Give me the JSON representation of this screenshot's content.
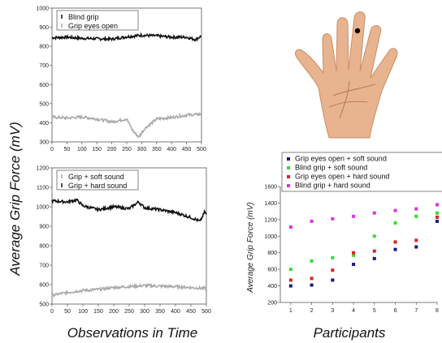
{
  "figure": {
    "shared_ylabel": "Average Grip Force (mV)",
    "left_xlabel": "Observations in Time"
  },
  "chart_data": [
    {
      "type": "line",
      "xlim": [
        0,
        500
      ],
      "ylim": [
        300,
        1000
      ],
      "x_ticks": [
        "0",
        "50",
        "100",
        "150",
        "200",
        "250",
        "300",
        "350",
        "400",
        "450",
        "500"
      ],
      "y_ticks": [
        "300",
        "400",
        "500",
        "600",
        "700",
        "800",
        "900",
        "1000"
      ],
      "legend_position": "top-left",
      "series": [
        {
          "name": "Blind grip",
          "color": "#111111",
          "x": [
            0,
            50,
            100,
            150,
            200,
            250,
            300,
            350,
            400,
            450,
            480,
            500
          ],
          "y": [
            845,
            848,
            842,
            840,
            838,
            850,
            858,
            855,
            848,
            848,
            835,
            855
          ]
        },
        {
          "name": "Grip eyes open",
          "color": "#aaaaaa",
          "x": [
            0,
            50,
            100,
            150,
            200,
            250,
            270,
            290,
            310,
            350,
            400,
            450,
            500
          ],
          "y": [
            430,
            425,
            430,
            420,
            405,
            420,
            360,
            325,
            370,
            420,
            428,
            440,
            445
          ]
        }
      ]
    },
    {
      "type": "line",
      "xlim": [
        0,
        500
      ],
      "ylim": [
        500,
        1200
      ],
      "x_ticks": [
        "0",
        "50",
        "100",
        "150",
        "200",
        "250",
        "300",
        "350",
        "400",
        "450",
        "500"
      ],
      "y_ticks": [
        "500",
        "600",
        "700",
        "800",
        "900",
        "1000",
        "1100",
        "1200"
      ],
      "legend_position": "top-left",
      "series": [
        {
          "name": "Grip + soft sound",
          "color": "#aaaaaa",
          "x": [
            0,
            50,
            100,
            150,
            200,
            250,
            300,
            350,
            400,
            450,
            500
          ],
          "y": [
            545,
            560,
            570,
            575,
            585,
            590,
            595,
            592,
            590,
            585,
            580
          ]
        },
        {
          "name": "Grip + hard sound",
          "color": "#111111",
          "x": [
            0,
            50,
            80,
            100,
            150,
            200,
            250,
            280,
            300,
            350,
            400,
            450,
            480,
            495,
            500
          ],
          "y": [
            1030,
            1025,
            1035,
            1005,
            985,
            1000,
            990,
            1025,
            995,
            985,
            970,
            945,
            925,
            975,
            960
          ]
        }
      ]
    },
    {
      "type": "scatter",
      "xlabel": "Participants",
      "xlim": [
        0.5,
        8
      ],
      "ylim": [
        200,
        1600
      ],
      "x_ticks": [
        "1",
        "2",
        "3",
        "4",
        "5",
        "6",
        "7",
        "8"
      ],
      "y_ticks": [
        "200",
        "400",
        "600",
        "800",
        "1000",
        "1200",
        "1400",
        "1600"
      ],
      "legend_position": "top",
      "series": [
        {
          "name": "Grip eyes open + soft sound",
          "color": "#1a1a80",
          "x": [
            1,
            2,
            3,
            4,
            5,
            6,
            7,
            8
          ],
          "y": [
            400,
            410,
            470,
            660,
            730,
            840,
            870,
            1180
          ]
        },
        {
          "name": "Blind grip + soft sound",
          "color": "#33dd33",
          "x": [
            1,
            2,
            3,
            4,
            5,
            6,
            7,
            8
          ],
          "y": [
            600,
            700,
            740,
            770,
            1000,
            1160,
            1240,
            1280
          ]
        },
        {
          "name": "Grip eyes open + hard sound",
          "color": "#dd2222",
          "x": [
            1,
            2,
            3,
            4,
            5,
            6,
            7,
            8
          ],
          "y": [
            470,
            490,
            590,
            800,
            820,
            930,
            950,
            1230
          ]
        },
        {
          "name": "Blind grip + hard sound",
          "color": "#dd33dd",
          "x": [
            1,
            2,
            3,
            4,
            5,
            6,
            7,
            8
          ],
          "y": [
            1110,
            1180,
            1210,
            1240,
            1280,
            1310,
            1330,
            1380
          ]
        }
      ]
    }
  ],
  "hand_image": {
    "marker": "fingertip-dot",
    "colors": {
      "skin": "#e8b38f",
      "skin_shadow": "#c98d66",
      "line": "#a86e4d",
      "dot": "#000000"
    }
  }
}
